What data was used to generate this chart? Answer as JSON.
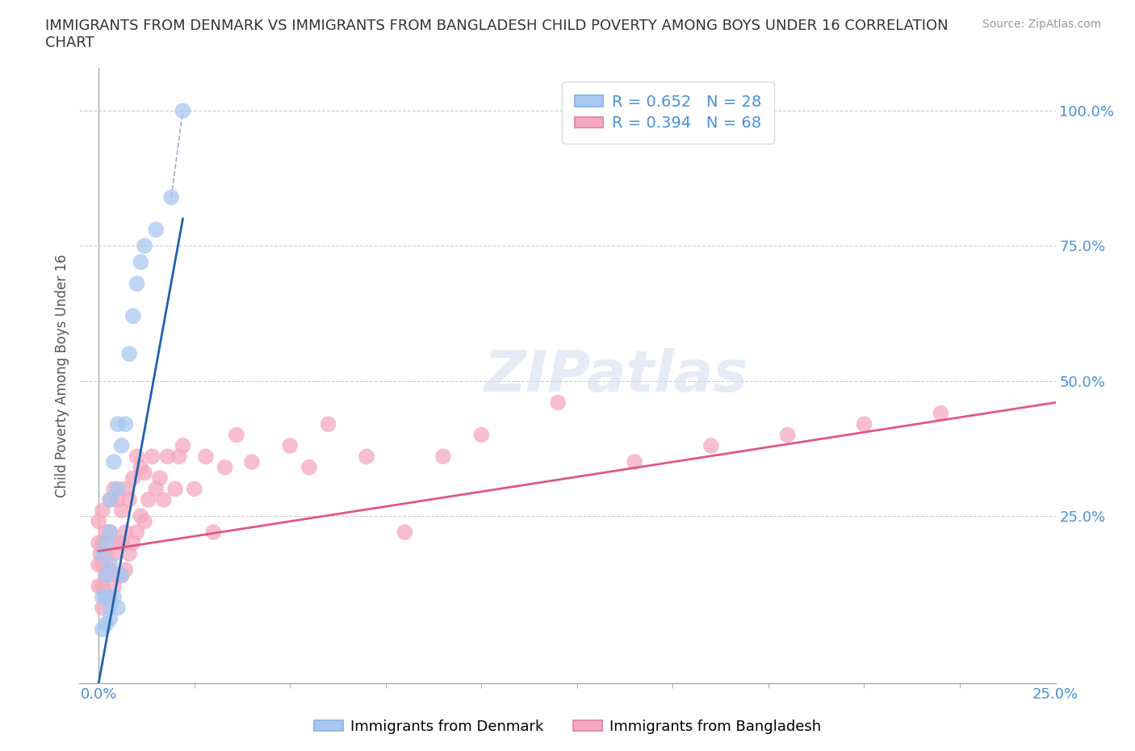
{
  "title_line1": "IMMIGRANTS FROM DENMARK VS IMMIGRANTS FROM BANGLADESH CHILD POVERTY AMONG BOYS UNDER 16 CORRELATION",
  "title_line2": "CHART",
  "source": "Source: ZipAtlas.com",
  "ylabel": "Child Poverty Among Boys Under 16",
  "legend_denmark": "R = 0.652   N = 28",
  "legend_bangladesh": "R = 0.394   N = 68",
  "watermark": "ZIPatlas",
  "background_color": "#ffffff",
  "denmark_color": "#a8c8f0",
  "bangladesh_color": "#f5a8c0",
  "denmark_line_color": "#2060b0",
  "bangladesh_line_color": "#e05880",
  "denmark_scatter_x": [
    0.001,
    0.001,
    0.001,
    0.002,
    0.002,
    0.002,
    0.002,
    0.003,
    0.003,
    0.003,
    0.003,
    0.003,
    0.004,
    0.004,
    0.005,
    0.005,
    0.005,
    0.006,
    0.006,
    0.007,
    0.008,
    0.009,
    0.01,
    0.011,
    0.012,
    0.015,
    0.019,
    0.022
  ],
  "denmark_scatter_y": [
    0.04,
    0.1,
    0.18,
    0.05,
    0.1,
    0.14,
    0.2,
    0.06,
    0.08,
    0.16,
    0.22,
    0.28,
    0.1,
    0.35,
    0.08,
    0.3,
    0.42,
    0.14,
    0.38,
    0.42,
    0.55,
    0.62,
    0.68,
    0.72,
    0.75,
    0.78,
    0.84,
    1.0
  ],
  "bangladesh_scatter_x": [
    0.0,
    0.0,
    0.0,
    0.0,
    0.0005,
    0.001,
    0.001,
    0.001,
    0.001,
    0.001,
    0.002,
    0.002,
    0.002,
    0.002,
    0.003,
    0.003,
    0.003,
    0.003,
    0.004,
    0.004,
    0.004,
    0.005,
    0.005,
    0.005,
    0.006,
    0.006,
    0.006,
    0.007,
    0.007,
    0.007,
    0.008,
    0.008,
    0.009,
    0.009,
    0.01,
    0.01,
    0.011,
    0.011,
    0.012,
    0.012,
    0.013,
    0.014,
    0.015,
    0.016,
    0.017,
    0.018,
    0.02,
    0.021,
    0.022,
    0.025,
    0.028,
    0.03,
    0.033,
    0.036,
    0.04,
    0.05,
    0.055,
    0.06,
    0.07,
    0.08,
    0.09,
    0.1,
    0.12,
    0.14,
    0.16,
    0.18,
    0.2,
    0.22
  ],
  "bangladesh_scatter_y": [
    0.12,
    0.16,
    0.2,
    0.24,
    0.18,
    0.08,
    0.12,
    0.16,
    0.2,
    0.26,
    0.1,
    0.14,
    0.18,
    0.22,
    0.1,
    0.15,
    0.22,
    0.28,
    0.12,
    0.18,
    0.3,
    0.14,
    0.2,
    0.28,
    0.14,
    0.2,
    0.26,
    0.15,
    0.22,
    0.3,
    0.18,
    0.28,
    0.2,
    0.32,
    0.22,
    0.36,
    0.25,
    0.34,
    0.24,
    0.33,
    0.28,
    0.36,
    0.3,
    0.32,
    0.28,
    0.36,
    0.3,
    0.36,
    0.38,
    0.3,
    0.36,
    0.22,
    0.34,
    0.4,
    0.35,
    0.38,
    0.34,
    0.42,
    0.36,
    0.22,
    0.36,
    0.4,
    0.46,
    0.35,
    0.38,
    0.4,
    0.42,
    0.44
  ],
  "xlim_pct": [
    0.0,
    0.25
  ],
  "ylim": [
    -0.06,
    1.08
  ],
  "ytick_positions": [
    0.25,
    0.5,
    0.75,
    1.0
  ],
  "ytick_labels": [
    "25.0%",
    "50.0%",
    "75.0%",
    "100.0%"
  ],
  "xtick_positions": [
    0.0,
    0.25
  ],
  "xtick_labels": [
    "0.0%",
    "25.0%"
  ],
  "denmark_line_x": [
    0.0,
    0.022
  ],
  "denmark_line_y": [
    -0.06,
    0.8
  ],
  "bangladesh_line_x": [
    0.0,
    0.25
  ],
  "bangladesh_line_y": [
    0.185,
    0.46
  ],
  "dashed_line_x": [
    0.019,
    0.022
  ],
  "dashed_line_y": [
    0.84,
    1.0
  ]
}
